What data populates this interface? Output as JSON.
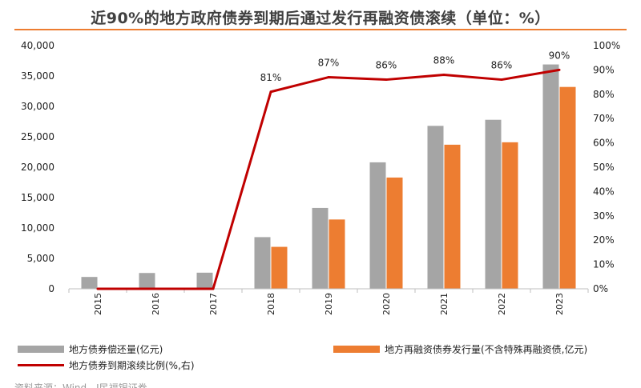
{
  "chart_data": {
    "type": "bar",
    "title": "近90%的地方政府债券到期后通过发行再融资债滚续（单位：%）",
    "categories": [
      "2015",
      "2016",
      "2017",
      "2018",
      "2019",
      "2020",
      "2021",
      "2022",
      "2023"
    ],
    "series": [
      {
        "name": "地方债券偿还量(亿元)",
        "kind": "bar",
        "axis": "left",
        "color": "#a5a5a5",
        "values": [
          1950,
          2600,
          2650,
          8500,
          13300,
          20800,
          26800,
          27800,
          36900
        ]
      },
      {
        "name": "地方再融资债券发行量(不含特殊再融资债,亿元)",
        "kind": "bar",
        "axis": "left",
        "color": "#ed7d31",
        "values": [
          0,
          0,
          0,
          6900,
          11400,
          18300,
          23700,
          24100,
          33200
        ]
      },
      {
        "name": "地方债券到期滚续比例(%,右)",
        "kind": "line",
        "axis": "right",
        "color": "#c00000",
        "values": [
          0,
          0,
          0,
          81,
          87,
          86,
          88,
          86,
          90
        ],
        "labels": [
          "",
          "",
          "",
          "81%",
          "87%",
          "86%",
          "88%",
          "86%",
          "90%"
        ]
      }
    ],
    "y_left": {
      "range": [
        0,
        40000
      ],
      "ticks": [
        0,
        5000,
        10000,
        15000,
        20000,
        25000,
        30000,
        35000,
        40000
      ],
      "tick_labels": [
        "0",
        "5,000",
        "10,000",
        "15,000",
        "20,000",
        "25,000",
        "30,000",
        "35,000",
        "40,000"
      ]
    },
    "y_right": {
      "range": [
        0,
        100
      ],
      "ticks": [
        0,
        10,
        20,
        30,
        40,
        50,
        60,
        70,
        80,
        90,
        100
      ],
      "tick_labels": [
        "0%",
        "10%",
        "20%",
        "30%",
        "40%",
        "50%",
        "60%",
        "70%",
        "80%",
        "90%",
        "100%"
      ]
    },
    "grid": false,
    "legend_position": "bottom"
  },
  "source_fragment": "资料来源：Wind，Ⅰ民福银证券"
}
